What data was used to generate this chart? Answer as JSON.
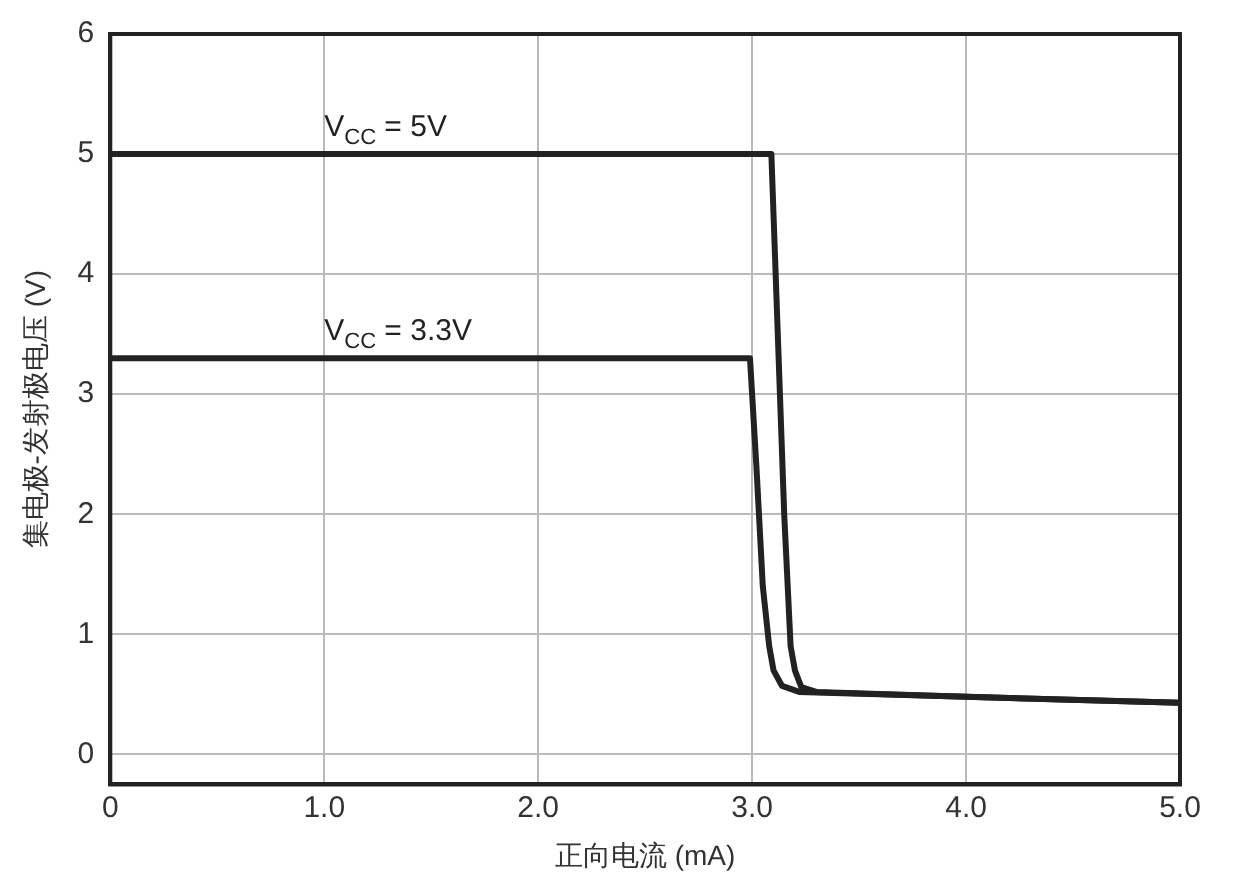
{
  "chart_data": {
    "type": "line",
    "xlabel": "正向电流 (mA)",
    "ylabel": "集电极-发射极电压 (V)",
    "xlim": [
      0,
      5
    ],
    "xticks": [
      0,
      {
        "value": 1,
        "label": "1.0"
      },
      {
        "value": 2,
        "label": "2.0"
      },
      {
        "value": 3,
        "label": "3.0"
      },
      {
        "value": 4,
        "label": "4.0"
      },
      {
        "value": 5,
        "label": "5.0"
      }
    ],
    "ylim": [
      -0.25,
      6
    ],
    "yticks": [
      0,
      1,
      2,
      3,
      4,
      5,
      6
    ],
    "grid": true,
    "legend": false,
    "marker": "none",
    "line_style": "solid",
    "series": [
      {
        "name": "V$_{CC}$ = 5V",
        "color": "#222222",
        "x": [
          0,
          3.09,
          3.12,
          3.15,
          3.18,
          3.2,
          3.23,
          3.3,
          4.0,
          5.0
        ],
        "values": [
          5,
          5,
          3.5,
          2,
          0.9,
          0.7,
          0.56,
          0.52,
          0.48,
          0.43
        ]
      },
      {
        "name": "V$_{CC}$ = 3.3V",
        "color": "#222222",
        "x": [
          0,
          2.99,
          3.02,
          3.05,
          3.08,
          3.1,
          3.14,
          3.22,
          4.0,
          5.0
        ],
        "values": [
          3.3,
          3.3,
          2.4,
          1.4,
          0.9,
          0.7,
          0.57,
          0.52,
          0.48,
          0.43
        ]
      }
    ]
  }
}
